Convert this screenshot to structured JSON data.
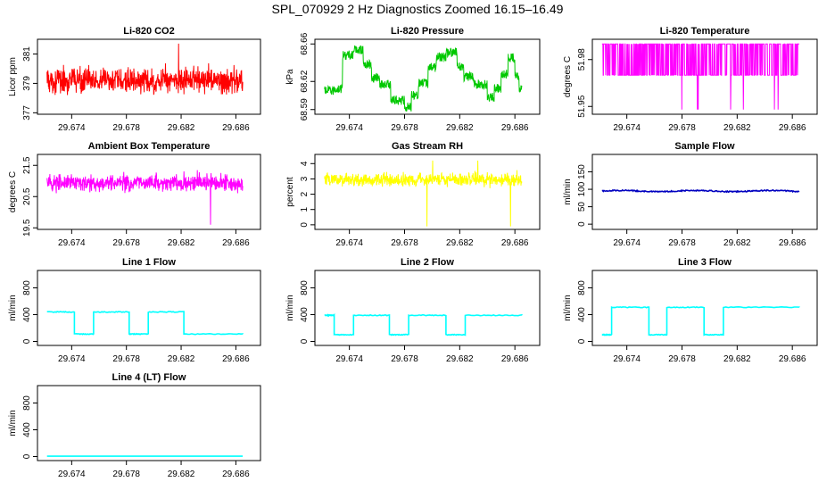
{
  "page_title": "SPL_070929  2 Hz Diagnostics Zoomed 16.15–16.49",
  "chart_data": [
    {
      "type": "line",
      "id": "co2",
      "title": "Li-820 CO2",
      "ylabel": "Licor ppm",
      "color": "#ff0000",
      "xlim": [
        29.6715,
        29.6878
      ],
      "x_ticks": [
        29.674,
        29.678,
        29.682,
        29.686
      ],
      "x_tick_labels": [
        "29.674",
        "29.678",
        "29.682",
        "29.686"
      ],
      "ylim": [
        376.9,
        382.0
      ],
      "y_ticks": [
        377,
        379,
        381
      ],
      "y_tick_labels": [
        "377",
        "379",
        "381"
      ],
      "xdata_range": [
        29.6722,
        29.6865
      ],
      "signal": {
        "kind": "noise",
        "mean": 379.2,
        "sd": 0.6,
        "min": 377.6,
        "max": 381.7
      }
    },
    {
      "type": "line",
      "id": "pressure",
      "title": "Li-820 Pressure",
      "ylabel": "kPa",
      "color": "#00c800",
      "xlim": [
        29.6715,
        29.6878
      ],
      "x_ticks": [
        29.674,
        29.678,
        29.682,
        29.686
      ],
      "x_tick_labels": [
        "29.674",
        "29.678",
        "29.682",
        "29.686"
      ],
      "ylim": [
        68.585,
        68.665
      ],
      "y_ticks": [
        68.59,
        68.62,
        68.66
      ],
      "y_tick_labels": [
        "68.59",
        "68.62",
        "68.66"
      ],
      "xdata_range": [
        29.6722,
        29.6865
      ],
      "signal": {
        "kind": "steps_noisy",
        "band": 0.005,
        "steps": [
          [
            29.6722,
            68.61
          ],
          [
            29.6729,
            68.612
          ],
          [
            29.6735,
            68.648
          ],
          [
            29.6743,
            68.654
          ],
          [
            29.675,
            68.638
          ],
          [
            29.6756,
            68.624
          ],
          [
            29.6762,
            68.617
          ],
          [
            29.677,
            68.6
          ],
          [
            29.678,
            68.593
          ],
          [
            29.6785,
            68.606
          ],
          [
            29.679,
            68.618
          ],
          [
            29.6797,
            68.635
          ],
          [
            29.6803,
            68.646
          ],
          [
            29.681,
            68.651
          ],
          [
            29.6818,
            68.636
          ],
          [
            29.6823,
            68.625
          ],
          [
            29.683,
            68.617
          ],
          [
            29.684,
            68.603
          ],
          [
            29.6845,
            68.613
          ],
          [
            29.685,
            68.628
          ],
          [
            29.6855,
            68.645
          ],
          [
            29.686,
            68.627
          ],
          [
            29.6863,
            68.612
          ]
        ]
      }
    },
    {
      "type": "line",
      "id": "licor_temp",
      "title": "Li-820 Temperature",
      "ylabel": "degrees C",
      "color": "#ff00ff",
      "xlim": [
        29.6715,
        29.6878
      ],
      "x_ticks": [
        29.674,
        29.678,
        29.682,
        29.686
      ],
      "x_tick_labels": [
        "29.674",
        "29.678",
        "29.682",
        "29.686"
      ],
      "ylim": [
        51.945,
        51.993
      ],
      "y_ticks": [
        51.95,
        51.98
      ],
      "y_tick_labels": [
        "51.95",
        "51.98"
      ],
      "xdata_range": [
        29.6722,
        29.6865
      ],
      "signal": {
        "kind": "binary_flicker",
        "high": 51.99,
        "low": 51.97,
        "spike_low": 51.948,
        "spike_count": 7
      }
    },
    {
      "type": "line",
      "id": "box_temp",
      "title": "Ambient Box Temperature",
      "ylabel": "degrees C",
      "color": "#ff00ff",
      "xlim": [
        29.6715,
        29.6878
      ],
      "x_ticks": [
        29.674,
        29.678,
        29.682,
        29.686
      ],
      "x_tick_labels": [
        "29.674",
        "29.678",
        "29.682",
        "29.686"
      ],
      "ylim": [
        19.45,
        21.85
      ],
      "y_ticks": [
        19.5,
        20.5,
        21.5
      ],
      "y_tick_labels": [
        "19.5",
        "20.5",
        "21.5"
      ],
      "xdata_range": [
        29.6722,
        29.6865
      ],
      "signal": {
        "kind": "noise",
        "mean": 20.95,
        "sd": 0.2,
        "min": 19.6,
        "max": 21.8
      }
    },
    {
      "type": "line",
      "id": "rh",
      "title": "Gas Stream RH",
      "ylabel": "percent",
      "color": "#ffff00",
      "xlim": [
        29.6715,
        29.6878
      ],
      "x_ticks": [
        29.674,
        29.678,
        29.682,
        29.686
      ],
      "x_tick_labels": [
        "29.674",
        "29.678",
        "29.682",
        "29.686"
      ],
      "ylim": [
        -0.3,
        4.6
      ],
      "y_ticks": [
        0,
        1,
        2,
        3,
        4
      ],
      "y_tick_labels": [
        "0",
        "1",
        "2",
        "3",
        "4"
      ],
      "xdata_range": [
        29.6722,
        29.6865
      ],
      "signal": {
        "kind": "noise",
        "mean": 2.95,
        "sd": 0.3,
        "min": -0.1,
        "max": 4.2
      }
    },
    {
      "type": "line",
      "id": "sample_flow",
      "title": "Sample Flow",
      "ylabel": "ml/min",
      "color": "#0000c0",
      "xlim": [
        29.6715,
        29.6878
      ],
      "x_ticks": [
        29.674,
        29.678,
        29.682,
        29.686
      ],
      "x_tick_labels": [
        "29.674",
        "29.678",
        "29.682",
        "29.686"
      ],
      "ylim": [
        -15,
        200
      ],
      "y_ticks": [
        0,
        50,
        100,
        150
      ],
      "y_tick_labels": [
        "0",
        "50",
        "100",
        "150"
      ],
      "xdata_range": [
        29.6722,
        29.6865
      ],
      "signal": {
        "kind": "flat",
        "value": 95,
        "wobble": 3
      }
    },
    {
      "type": "line",
      "id": "line1",
      "title": "Line 1 Flow",
      "ylabel": "ml/min",
      "color": "#00ffff",
      "xlim": [
        29.6715,
        29.6878
      ],
      "x_ticks": [
        29.674,
        29.678,
        29.682,
        29.686
      ],
      "x_tick_labels": [
        "29.674",
        "29.678",
        "29.682",
        "29.686"
      ],
      "ylim": [
        -60,
        1060
      ],
      "y_ticks": [
        0,
        400,
        800
      ],
      "y_tick_labels": [
        "0",
        "400",
        "800"
      ],
      "xdata_range": [
        29.6722,
        29.6865
      ],
      "signal": {
        "kind": "square",
        "steps": [
          [
            29.6722,
            440
          ],
          [
            29.6742,
            110
          ],
          [
            29.6756,
            440
          ],
          [
            29.6782,
            110
          ],
          [
            29.6796,
            440
          ],
          [
            29.6822,
            110
          ],
          [
            29.6865,
            110
          ]
        ]
      }
    },
    {
      "type": "line",
      "id": "line2",
      "title": "Line 2 Flow",
      "ylabel": "ml/min",
      "color": "#00ffff",
      "xlim": [
        29.6715,
        29.6878
      ],
      "x_ticks": [
        29.674,
        29.678,
        29.682,
        29.686
      ],
      "x_tick_labels": [
        "29.674",
        "29.678",
        "29.682",
        "29.686"
      ],
      "ylim": [
        -60,
        1060
      ],
      "y_ticks": [
        0,
        400,
        800
      ],
      "y_tick_labels": [
        "0",
        "400",
        "800"
      ],
      "xdata_range": [
        29.6722,
        29.6865
      ],
      "signal": {
        "kind": "square",
        "steps": [
          [
            29.6722,
            390
          ],
          [
            29.6729,
            100
          ],
          [
            29.6743,
            390
          ],
          [
            29.6769,
            100
          ],
          [
            29.6783,
            390
          ],
          [
            29.681,
            100
          ],
          [
            29.6824,
            390
          ],
          [
            29.6865,
            390
          ]
        ]
      }
    },
    {
      "type": "line",
      "id": "line3",
      "title": "Line 3 Flow",
      "ylabel": "ml/min",
      "color": "#00ffff",
      "xlim": [
        29.6715,
        29.6878
      ],
      "x_ticks": [
        29.674,
        29.678,
        29.682,
        29.686
      ],
      "x_tick_labels": [
        "29.674",
        "29.678",
        "29.682",
        "29.686"
      ],
      "ylim": [
        -60,
        1060
      ],
      "y_ticks": [
        0,
        400,
        800
      ],
      "y_tick_labels": [
        "0",
        "400",
        "800"
      ],
      "xdata_range": [
        29.6722,
        29.6865
      ],
      "signal": {
        "kind": "square",
        "steps": [
          [
            29.6722,
            100
          ],
          [
            29.6729,
            510
          ],
          [
            29.6756,
            100
          ],
          [
            29.6769,
            510
          ],
          [
            29.6796,
            100
          ],
          [
            29.681,
            510
          ],
          [
            29.6865,
            510
          ]
        ]
      }
    },
    {
      "type": "line",
      "id": "line4",
      "title": "Line 4 (LT) Flow",
      "ylabel": "ml/min",
      "color": "#00ffff",
      "xlim": [
        29.6715,
        29.6878
      ],
      "x_ticks": [
        29.674,
        29.678,
        29.682,
        29.686
      ],
      "x_tick_labels": [
        "29.674",
        "29.678",
        "29.682",
        "29.686"
      ],
      "ylim": [
        -60,
        1060
      ],
      "y_ticks": [
        0,
        400,
        800
      ],
      "y_tick_labels": [
        "0",
        "400",
        "800"
      ],
      "xdata_range": [
        29.6722,
        29.6865
      ],
      "signal": {
        "kind": "flat",
        "value": 5,
        "wobble": 0
      }
    }
  ]
}
